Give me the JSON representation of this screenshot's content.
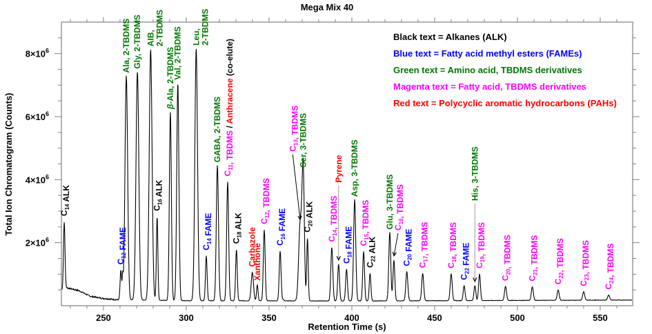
{
  "chart_data": {
    "type": "line",
    "title": "Mega Mix 40",
    "xlabel": "Retention Time (s)",
    "ylabel": "Total Ion Chromatogram (Counts)",
    "xlim": [
      224.6,
      569.6
    ],
    "ylim": [
      0,
      9000000
    ],
    "x_ticks": [
      250,
      300,
      350,
      400,
      450,
      500,
      550
    ],
    "x_tick_labels": [
      "250",
      "300",
      "350",
      "400",
      "450",
      "500",
      "550"
    ],
    "x_minor_step": 10,
    "y_ticks": [
      2000000,
      4000000,
      6000000,
      8000000
    ],
    "y_tick_labels": [
      {
        "mantissa": "2×10",
        "exp": "6"
      },
      {
        "mantissa": "4×10",
        "exp": "6"
      },
      {
        "mantissa": "6×10",
        "exp": "6"
      },
      {
        "mantissa": "8×10",
        "exp": "6"
      }
    ],
    "y_minor_step": 500000,
    "grid": false,
    "colors": {
      "alkane": "#000000",
      "fame": "#0000ff",
      "amino": "#007700",
      "fatty_tbdms": "#ff00ff",
      "pah": "#ff0000",
      "trace": "#000000",
      "axis": "#808080"
    },
    "legend": {
      "placement": "top-right",
      "entries": [
        {
          "text": "Black text = Alkanes (ALK)",
          "class": "alkane"
        },
        {
          "text": "Blue text = Fatty acid methyl esters (FAMEs)",
          "class": "fame"
        },
        {
          "text": "Green text = Amino acid, TBDMS derivatives",
          "class": "amino"
        },
        {
          "text": "Magenta text = Fatty acid, TBDMS derivatives",
          "class": "fatty_tbdms"
        },
        {
          "text": "Red text = Polycyclic aromatic hydrocarbons (PAHs)",
          "class": "pah"
        }
      ]
    },
    "baseline": [
      {
        "t": 224.6,
        "v": 450000
      },
      {
        "t": 227.0,
        "v": 600000
      },
      {
        "t": 228.5,
        "v": 560000
      },
      {
        "t": 235.0,
        "v": 480000
      },
      {
        "t": 242.0,
        "v": 300000
      },
      {
        "t": 250.0,
        "v": 230000
      },
      {
        "t": 258.0,
        "v": 190000
      },
      {
        "t": 300.0,
        "v": 160000
      },
      {
        "t": 400.0,
        "v": 150000
      },
      {
        "t": 569.6,
        "v": 180000
      }
    ],
    "peaks": [
      {
        "t": 226.3,
        "v": 2670000,
        "w": 0.45,
        "class": "alkane",
        "label": [
          {
            "c": "C"
          },
          {
            "sub": "14"
          },
          {
            "c": " ALK"
          }
        ],
        "label_dy": -8
      },
      {
        "t": 256.5,
        "v": 70000,
        "w": 0.6,
        "class": null
      },
      {
        "t": 260.5,
        "v": 1130000,
        "w": 0.45,
        "class": "fame",
        "label": [
          {
            "c": "C"
          },
          {
            "sub": "12"
          },
          {
            "c": " FAME"
          }
        ],
        "label_dy": -8
      },
      {
        "t": 261.6,
        "v": 900000,
        "w": 0.3,
        "class": null
      },
      {
        "t": 263.8,
        "v": 7300000,
        "w": 0.8,
        "class": "amino",
        "label": [
          {
            "c": "Ala, 2-TBDMS"
          }
        ],
        "label_dy": -4
      },
      {
        "t": 270.5,
        "v": 7430000,
        "w": 0.85,
        "class": "amino",
        "label": [
          {
            "c": "Gly, 2-TBDMS"
          }
        ],
        "label_dy": -4
      },
      {
        "t": 278.5,
        "v": 8140000,
        "w": 0.85,
        "class": "amino",
        "label": [
          {
            "c": "AIB,"
          }
        ],
        "label2": [
          {
            "c": "2-TBDMS"
          }
        ],
        "label_dy": -4
      },
      {
        "t": 282.4,
        "v": 2830000,
        "w": 0.45,
        "class": "alkane",
        "label": [
          {
            "c": "C"
          },
          {
            "sub": "16"
          },
          {
            "c": " ALK"
          }
        ],
        "label_dy": -8
      },
      {
        "t": 290.4,
        "v": 6150000,
        "w": 0.6,
        "class": "amino",
        "label": [
          {
            "c": "β",
            "it": true
          },
          {
            "c": "-Ala, 2-TBDMS"
          }
        ],
        "label_dy": -4
      },
      {
        "t": 294.9,
        "v": 7080000,
        "w": 0.65,
        "class": "amino",
        "label": [
          {
            "c": "Val, 2-TBDMS"
          }
        ],
        "label_dy": -4
      },
      {
        "t": 306.0,
        "v": 8170000,
        "w": 0.8,
        "class": "amino",
        "label": [
          {
            "c": "Leu,"
          }
        ],
        "label2": [
          {
            "c": "2-TBDMS"
          }
        ],
        "label_dy": -4
      },
      {
        "t": 312.1,
        "v": 1580000,
        "w": 0.5,
        "class": "fame",
        "label": [
          {
            "c": "C"
          },
          {
            "sub": "14"
          },
          {
            "c": " FAME"
          }
        ],
        "label_dy": -8
      },
      {
        "t": 318.8,
        "v": 4460000,
        "w": 0.65,
        "class": "amino",
        "label": [
          {
            "c": "GABA, 2-TBDMS"
          }
        ],
        "label_dy": -4
      },
      {
        "t": 325.0,
        "v": 3930000,
        "w": 0.6,
        "class": "fatty_tbdms",
        "label": [
          {
            "c": "C",
            "cls": "fatty_tbdms"
          },
          {
            "sub": "11",
            "cls": "fatty_tbdms"
          },
          {
            "c": ", TBDMS",
            "cls": "fatty_tbdms"
          },
          {
            "c": " / ",
            "cls": "alkane"
          },
          {
            "c": "Anthracene",
            "cls": "pah"
          },
          {
            "c": " (co-elute)",
            "cls": "alkane"
          }
        ],
        "label_dy": -8
      },
      {
        "t": 330.3,
        "v": 1790000,
        "w": 0.5,
        "class": "alkane",
        "label": [
          {
            "c": "C"
          },
          {
            "sub": "18"
          },
          {
            "c": " ALK"
          }
        ],
        "label_dy": -8
      },
      {
        "t": 339.9,
        "v": 1060000,
        "w": 0.7,
        "class": "pah",
        "label": [
          {
            "c": "Carbazole"
          }
        ],
        "label_dy": -8
      },
      {
        "t": 342.9,
        "v": 660000,
        "w": 0.45,
        "class": "pah",
        "label": [
          {
            "c": "Xanthone"
          }
        ],
        "label_dy": -6
      },
      {
        "t": 347.1,
        "v": 2410000,
        "w": 0.55,
        "class": "fatty_tbdms",
        "label": [
          {
            "c": "C"
          },
          {
            "sub": "12"
          },
          {
            "c": ", TBDMS"
          }
        ],
        "label_dy": -8
      },
      {
        "t": 356.7,
        "v": 1730000,
        "w": 0.55,
        "class": "fame",
        "label": [
          {
            "c": "C"
          },
          {
            "sub": "16"
          },
          {
            "c": " FAME"
          }
        ],
        "label_dy": -8
      },
      {
        "t": 358.6,
        "v": 200000,
        "w": 0.4,
        "class": null
      },
      {
        "t": 368.8,
        "v": 2600000,
        "w": 0.9,
        "class": "fatty_tbdms",
        "label": [
          {
            "c": "C"
          },
          {
            "sub": "13"
          },
          {
            "c": ", TBDMS"
          }
        ],
        "arrow": {
          "from_dt": -4.5,
          "from_dv": 2200000
        }
      },
      {
        "t": 370.6,
        "v": 4300000,
        "w": 0.7,
        "class": "amino",
        "label": [
          {
            "c": "Ser, 3-TBDMS"
          }
        ],
        "label_dy": -4
      },
      {
        "t": 373.2,
        "v": 2150000,
        "w": 0.45,
        "class": "alkane",
        "label": [
          {
            "c": "C"
          },
          {
            "sub": "20"
          },
          {
            "c": " ALK"
          }
        ],
        "label_dy": -8
      },
      {
        "t": 387.9,
        "v": 1850000,
        "w": 0.6,
        "class": "fatty_tbdms",
        "label": [
          {
            "c": "C"
          },
          {
            "sub": "14"
          },
          {
            "c": ", TBDMS"
          }
        ],
        "label_dy": -8
      },
      {
        "t": 392.0,
        "v": 1320000,
        "w": 0.55,
        "class": "pah",
        "label": [
          {
            "c": "Pyrene"
          }
        ],
        "arrow": {
          "from_dt": 0,
          "from_dv": 2500000
        }
      },
      {
        "t": 396.8,
        "v": 1160000,
        "w": 0.55,
        "class": "fame",
        "label": [
          {
            "c": "C"
          },
          {
            "sub": "18"
          },
          {
            "c": " FAME"
          }
        ],
        "label_dy": -8
      },
      {
        "t": 401.7,
        "v": 3370000,
        "w": 0.65,
        "class": "amino",
        "label": [
          {
            "c": "Asp, 3-TBDMS"
          }
        ],
        "label_dy": -4
      },
      {
        "t": 407.1,
        "v": 1720000,
        "w": 0.55,
        "class": "fatty_tbdms",
        "label": [
          {
            "c": "C"
          },
          {
            "sub": "15"
          },
          {
            "c": ", TBDMS"
          }
        ],
        "label_dy": -8
      },
      {
        "t": 411.0,
        "v": 1030000,
        "w": 0.5,
        "class": "alkane",
        "label": [
          {
            "c": "C"
          },
          {
            "sub": "22"
          },
          {
            "c": " ALK"
          }
        ],
        "label_dy": -8
      },
      {
        "t": 422.9,
        "v": 2330000,
        "w": 0.6,
        "class": "amino",
        "label": [
          {
            "c": "Glu, 3-TBDMS"
          }
        ],
        "label_dy": -4
      },
      {
        "t": 425.4,
        "v": 1450000,
        "w": 0.55,
        "class": "fatty_tbdms",
        "label": [
          {
            "c": "C"
          },
          {
            "sub": "16"
          },
          {
            "c": ", TBDMS"
          }
        ],
        "arrow": {
          "from_dt": 2.5,
          "from_dv": 850000
        }
      },
      {
        "t": 433.2,
        "v": 1080000,
        "w": 0.6,
        "class": "fame",
        "label": [
          {
            "c": "C"
          },
          {
            "sub": "20"
          },
          {
            "c": " FAME"
          }
        ],
        "label_dy": -8
      },
      {
        "t": 442.8,
        "v": 1020000,
        "w": 0.6,
        "class": "fatty_tbdms",
        "label": [
          {
            "c": "C"
          },
          {
            "sub": "17"
          },
          {
            "c": ", TBDMS"
          }
        ],
        "label_dy": -8
      },
      {
        "t": 460.0,
        "v": 1010000,
        "w": 0.6,
        "class": "fatty_tbdms",
        "label": [
          {
            "c": "C"
          },
          {
            "sub": "18"
          },
          {
            "c": ", TBDMS"
          }
        ],
        "label_dy": -8
      },
      {
        "t": 467.8,
        "v": 640000,
        "w": 0.55,
        "class": "fame",
        "label": [
          {
            "c": "C"
          },
          {
            "sub": "22"
          },
          {
            "c": " FAME"
          }
        ],
        "label_dy": -8
      },
      {
        "t": 474.3,
        "v": 640000,
        "w": 0.55,
        "class": "amino",
        "label": [
          {
            "c": "His, 3-TBDMS"
          }
        ],
        "arrow": {
          "from_dt": 0,
          "from_dv": 2600000
        }
      },
      {
        "t": 477.1,
        "v": 1010000,
        "w": 0.55,
        "class": "fatty_tbdms",
        "label": [
          {
            "c": "C"
          },
          {
            "sub": "19"
          },
          {
            "c": ", TBDMS"
          }
        ],
        "label_dy": -8
      },
      {
        "t": 492.8,
        "v": 610000,
        "w": 0.6,
        "class": "fatty_tbdms",
        "label": [
          {
            "c": "C"
          },
          {
            "sub": "20"
          },
          {
            "c": ", TBDMS"
          }
        ],
        "label_dy": -8
      },
      {
        "t": 509.0,
        "v": 600000,
        "w": 0.6,
        "class": "fatty_tbdms",
        "label": [
          {
            "c": "C"
          },
          {
            "sub": "21"
          },
          {
            "c": ", TBDMS"
          }
        ],
        "label_dy": -8
      },
      {
        "t": 524.6,
        "v": 500000,
        "w": 0.6,
        "class": "fatty_tbdms",
        "label": [
          {
            "c": "C"
          },
          {
            "sub": "22"
          },
          {
            "c": ", TBDMS"
          }
        ],
        "label_dy": -8
      },
      {
        "t": 540.0,
        "v": 440000,
        "w": 0.6,
        "class": "fatty_tbdms",
        "label": [
          {
            "c": "C"
          },
          {
            "sub": "23"
          },
          {
            "c": ", TBDMS"
          }
        ],
        "label_dy": -8
      },
      {
        "t": 555.1,
        "v": 340000,
        "w": 0.6,
        "class": "fatty_tbdms",
        "label": [
          {
            "c": "C"
          },
          {
            "sub": "24"
          },
          {
            "c": ", TBDMS"
          }
        ],
        "label_dy": -8
      }
    ]
  }
}
